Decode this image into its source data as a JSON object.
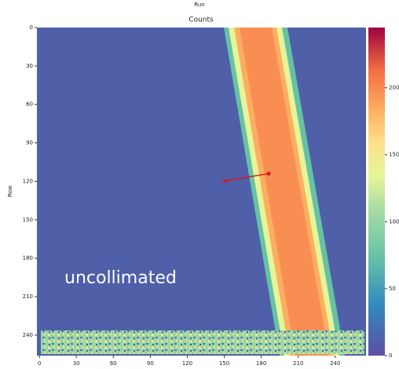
{
  "chart_data": {
    "type": "heatmap",
    "suptitle": "Run",
    "title": "Counts",
    "ylabel": "Row",
    "annotation": "uncollimated",
    "xlim": [
      -2,
      265
    ],
    "xticks": [
      0,
      30,
      60,
      90,
      120,
      150,
      180,
      210,
      240
    ],
    "ylim": [
      0,
      256
    ],
    "yticks": [
      0,
      30,
      60,
      90,
      120,
      150,
      180,
      210,
      240
    ],
    "clim": [
      0,
      245
    ],
    "cticks": [
      0,
      50,
      100,
      150,
      200
    ],
    "arrow": {
      "x": [
        186,
        148
      ],
      "y": [
        114,
        120
      ],
      "color": "#d7191c"
    }
  }
}
